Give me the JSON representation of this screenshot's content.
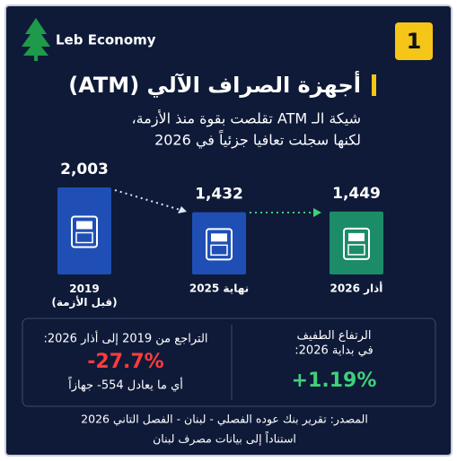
{
  "brand": "Leb Economy",
  "badge": "1",
  "chart_data": {
    "type": "bar",
    "title": "أجهزة الصراف الآلي (ATM)",
    "subtitle": [
      "شيكة الـ ATM تقلصت بقوة منذ الأزمة،",
      "لكنها سجلت تعافيا جزئياً في 2026"
    ],
    "categories": [
      "2019\n(قبل الأزمة)",
      "نهاية 2025",
      "أذار 2026"
    ],
    "values": [
      2003,
      1432,
      1449
    ],
    "value_labels": [
      "2,003",
      "1,432",
      "1,449"
    ],
    "colors": [
      "#1f4fb5",
      "#1f4fb5",
      "#1c8c68"
    ]
  },
  "stats": [
    {
      "label": "التراجع من 2019 إلى أذار 2026:",
      "value": "-27.7%",
      "note": "أي ما يعادل 554- جهازاً",
      "color": "#ff3b3b"
    },
    {
      "label": "الرتفاع الطفيف\nفي بداية 2026:",
      "value": "+1.19%",
      "color": "#3fd07a"
    }
  ],
  "source": [
    "المصدر: تقرير بنك عوده الفصلي - لبنان - الفصل التاني 2026",
    "استناداً إلى بيانات مصرف لبنان"
  ]
}
